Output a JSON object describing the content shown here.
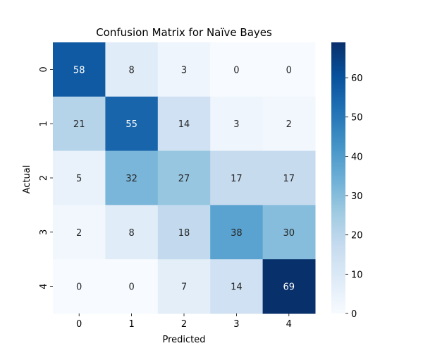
{
  "chart_data": {
    "type": "heatmap",
    "title": "Confusion Matrix for Naïve Bayes",
    "xlabel": "Predicted",
    "ylabel": "Actual",
    "x_categories": [
      "0",
      "1",
      "2",
      "3",
      "4"
    ],
    "y_categories": [
      "0",
      "1",
      "2",
      "3",
      "4"
    ],
    "values": [
      [
        58,
        8,
        3,
        0,
        0
      ],
      [
        21,
        55,
        14,
        3,
        2
      ],
      [
        5,
        32,
        27,
        17,
        17
      ],
      [
        2,
        8,
        18,
        38,
        30
      ],
      [
        0,
        0,
        7,
        14,
        69
      ]
    ],
    "colormap": "Blues",
    "vmin": 0,
    "vmax": 69,
    "colorbar_ticks": [
      0,
      10,
      20,
      30,
      40,
      50,
      60
    ],
    "colorbar": true,
    "annotations": true
  }
}
